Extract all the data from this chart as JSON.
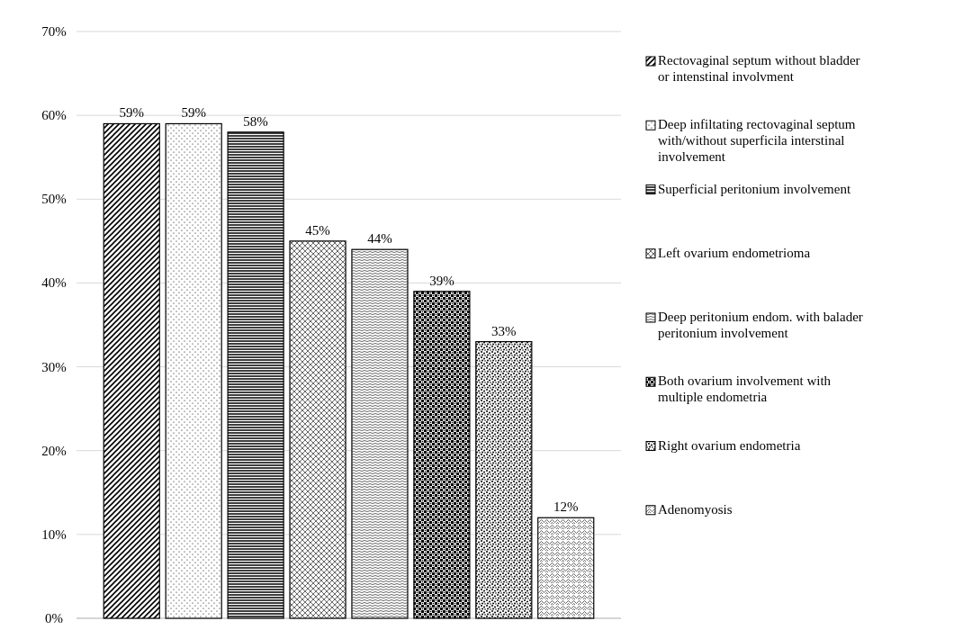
{
  "chart_data": {
    "type": "bar",
    "categories": [
      null
    ],
    "series": [
      {
        "name": "Rectovaginal septum without bladder or intenstinal involvment",
        "color": "#000000",
        "values": [
          59
        ],
        "value_labels": [
          "59%"
        ]
      },
      {
        "name": "Deep infiltating rectovaginal septum with/without superficila interstinal involvement",
        "color": "#000000",
        "values": [
          59
        ],
        "value_labels": [
          "59%"
        ]
      },
      {
        "name": "Superficial peritonium involvement",
        "color": "#000000",
        "values": [
          58
        ],
        "value_labels": [
          "58%"
        ]
      },
      {
        "name": "Left ovarium endometrioma",
        "color": "#000000",
        "values": [
          45
        ],
        "value_labels": [
          "45%"
        ]
      },
      {
        "name": "Deep peritonium endom. with balader peritonium involvement",
        "color": "#000000",
        "values": [
          44
        ],
        "value_labels": [
          "44%"
        ]
      },
      {
        "name": "Both ovarium involvement with multiple endometria",
        "color": "#000000",
        "values": [
          39
        ],
        "value_labels": [
          "39%"
        ]
      },
      {
        "name": "Right ovarium endometria",
        "color": "#000000",
        "values": [
          33
        ],
        "value_labels": [
          "33%"
        ]
      },
      {
        "name": "Adenomyosis",
        "color": "#000000",
        "values": [
          12
        ],
        "value_labels": [
          "12%"
        ]
      }
    ],
    "ylim": [
      0,
      70
    ],
    "yticks": [
      {
        "value": 0,
        "label": "0%"
      },
      {
        "value": 10,
        "label": "10%"
      },
      {
        "value": 20,
        "label": "20%"
      },
      {
        "value": 30,
        "label": "30%"
      },
      {
        "value": 40,
        "label": "40%"
      },
      {
        "value": 50,
        "label": "50%"
      },
      {
        "value": 60,
        "label": "60%"
      },
      {
        "value": 70,
        "label": "70%"
      }
    ],
    "grid": "y",
    "legend": "right"
  }
}
